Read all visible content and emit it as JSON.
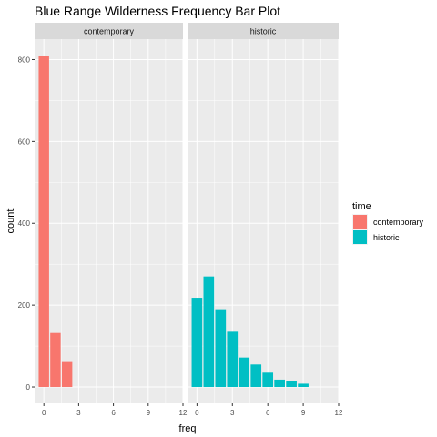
{
  "chart_data": {
    "type": "bar",
    "title": "Blue Range Wilderness Frequency Bar Plot",
    "xlabel": "freq",
    "ylabel": "count",
    "xlim": [
      -0.8,
      12
    ],
    "ylim": [
      -40,
      850
    ],
    "x_ticks": [
      0,
      3,
      6,
      9,
      12
    ],
    "y_ticks": [
      0,
      200,
      400,
      600,
      800
    ],
    "grid": true,
    "legend": {
      "title": "time",
      "position": "right"
    },
    "colors": {
      "contemporary": "#F8766D",
      "historic": "#00BFC4"
    },
    "panels": [
      {
        "name": "contemporary",
        "x": [
          0,
          1,
          2
        ],
        "values": [
          808,
          132,
          61
        ]
      },
      {
        "name": "historic",
        "x": [
          0,
          1,
          2,
          3,
          4,
          5,
          6,
          7,
          8,
          9
        ],
        "values": [
          218,
          270,
          190,
          135,
          72,
          55,
          35,
          18,
          15,
          8
        ]
      }
    ]
  }
}
